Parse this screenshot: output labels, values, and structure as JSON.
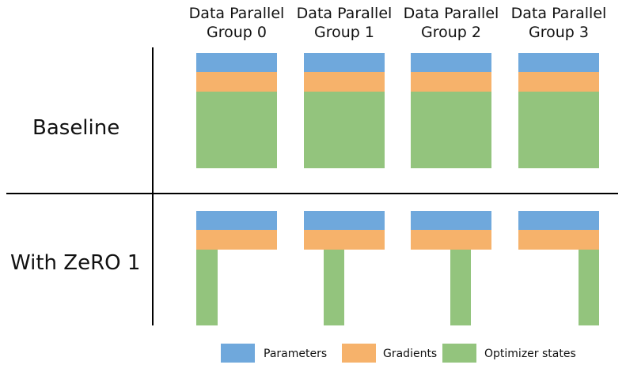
{
  "groups": [
    "Data Parallel\nGroup 0",
    "Data Parallel\nGroup 1",
    "Data Parallel\nGroup 2",
    "Data Parallel\nGroup 3"
  ],
  "rows": {
    "baseline": "Baseline",
    "zero": "With ZeRO 1"
  },
  "legend": {
    "parameters": "Parameters",
    "gradients": "Gradients",
    "optimizer": "Optimizer states"
  },
  "colors": {
    "parameters": "#6fa8dc",
    "gradients": "#f6b26b",
    "optimizer": "#93c47d",
    "lines": "#000000"
  }
}
